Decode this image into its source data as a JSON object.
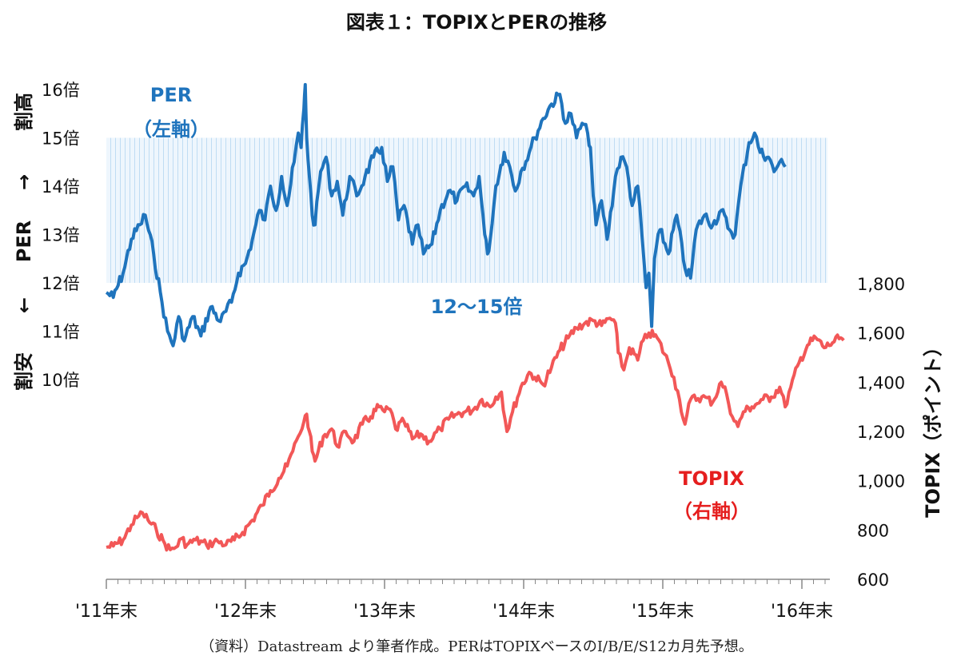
{
  "chart_data": {
    "type": "line",
    "title": "図表１：TOPIXとPERの推移",
    "x": [
      "'11年末",
      "'12年末",
      "'13年末",
      "'14年末",
      "'15年末",
      "'16年末"
    ],
    "xlabel": "",
    "y_left": {
      "label_top": "割高",
      "label_mid": "PER",
      "label_bottom": "割安",
      "arrow_up": "→",
      "arrow_down": "←",
      "ticks": [
        "16倍",
        "15倍",
        "14倍",
        "13倍",
        "12倍",
        "11倍",
        "10倍"
      ],
      "range": [
        10,
        16
      ]
    },
    "y_right": {
      "label": "TOPIX（ポイント）",
      "ticks": [
        "1,800",
        "1,600",
        "1,400",
        "1,200",
        "1,000",
        "800",
        "600"
      ],
      "range": [
        600,
        1800
      ]
    },
    "band": {
      "label": "12〜15倍",
      "from": 12,
      "to": 15
    },
    "series": [
      {
        "name_line1": "PER",
        "name_line2": "（左軸）",
        "axis": "left",
        "color": "#1f74bd",
        "points": [
          [
            0.0,
            11.8
          ],
          [
            0.05,
            11.7
          ],
          [
            0.12,
            12.2
          ],
          [
            0.18,
            12.9
          ],
          [
            0.24,
            13.2
          ],
          [
            0.28,
            13.4
          ],
          [
            0.34,
            12.6
          ],
          [
            0.4,
            11.6
          ],
          [
            0.44,
            11.0
          ],
          [
            0.48,
            10.7
          ],
          [
            0.52,
            11.3
          ],
          [
            0.56,
            10.8
          ],
          [
            0.62,
            11.3
          ],
          [
            0.68,
            10.9
          ],
          [
            0.75,
            11.5
          ],
          [
            0.82,
            11.2
          ],
          [
            0.9,
            11.6
          ],
          [
            0.95,
            12.2
          ],
          [
            1.0,
            12.4
          ],
          [
            1.05,
            12.9
          ],
          [
            1.1,
            13.5
          ],
          [
            1.14,
            13.3
          ],
          [
            1.18,
            14.0
          ],
          [
            1.22,
            13.5
          ],
          [
            1.26,
            14.2
          ],
          [
            1.3,
            13.6
          ],
          [
            1.35,
            14.5
          ],
          [
            1.38,
            15.1
          ],
          [
            1.4,
            14.8
          ],
          [
            1.42,
            15.6
          ],
          [
            1.43,
            16.1
          ],
          [
            1.44,
            15.0
          ],
          [
            1.46,
            14.2
          ],
          [
            1.48,
            13.4
          ],
          [
            1.5,
            13.2
          ],
          [
            1.54,
            14.3
          ],
          [
            1.58,
            14.6
          ],
          [
            1.62,
            13.8
          ],
          [
            1.66,
            14.1
          ],
          [
            1.7,
            13.4
          ],
          [
            1.75,
            14.2
          ],
          [
            1.8,
            13.8
          ],
          [
            1.86,
            14.2
          ],
          [
            1.92,
            14.6
          ],
          [
            1.98,
            14.8
          ],
          [
            2.02,
            14.1
          ],
          [
            2.06,
            14.4
          ],
          [
            2.1,
            13.3
          ],
          [
            2.14,
            13.6
          ],
          [
            2.2,
            12.8
          ],
          [
            2.24,
            13.2
          ],
          [
            2.28,
            12.6
          ],
          [
            2.34,
            12.8
          ],
          [
            2.4,
            13.5
          ],
          [
            2.46,
            13.9
          ],
          [
            2.52,
            13.7
          ],
          [
            2.58,
            14.0
          ],
          [
            2.64,
            13.8
          ],
          [
            2.68,
            14.2
          ],
          [
            2.72,
            13.0
          ],
          [
            2.74,
            12.6
          ],
          [
            2.76,
            12.9
          ],
          [
            2.8,
            14.0
          ],
          [
            2.86,
            14.7
          ],
          [
            2.9,
            14.4
          ],
          [
            2.94,
            13.9
          ],
          [
            2.98,
            14.3
          ],
          [
            3.04,
            14.7
          ],
          [
            3.08,
            15.0
          ],
          [
            3.14,
            15.4
          ],
          [
            3.2,
            15.7
          ],
          [
            3.26,
            15.9
          ],
          [
            3.3,
            15.3
          ],
          [
            3.34,
            15.5
          ],
          [
            3.38,
            15.0
          ],
          [
            3.42,
            15.3
          ],
          [
            3.46,
            15.1
          ],
          [
            3.48,
            14.8
          ],
          [
            3.5,
            13.8
          ],
          [
            3.52,
            13.2
          ],
          [
            3.56,
            13.7
          ],
          [
            3.6,
            12.9
          ],
          [
            3.66,
            14.2
          ],
          [
            3.7,
            14.6
          ],
          [
            3.74,
            14.4
          ],
          [
            3.78,
            13.6
          ],
          [
            3.82,
            14.0
          ],
          [
            3.85,
            13.0
          ],
          [
            3.88,
            11.9
          ],
          [
            3.9,
            12.2
          ],
          [
            3.92,
            11.1
          ],
          [
            3.94,
            12.5
          ],
          [
            3.98,
            13.1
          ],
          [
            4.04,
            12.6
          ],
          [
            4.1,
            13.4
          ],
          [
            4.16,
            12.3
          ],
          [
            4.2,
            12.1
          ],
          [
            4.24,
            13.1
          ],
          [
            4.3,
            13.4
          ],
          [
            4.36,
            13.2
          ],
          [
            4.42,
            13.5
          ],
          [
            4.48,
            13.1
          ],
          [
            4.52,
            13.0
          ],
          [
            4.56,
            14.0
          ],
          [
            4.62,
            14.9
          ],
          [
            4.66,
            15.1
          ],
          [
            4.7,
            14.7
          ],
          [
            4.76,
            14.6
          ],
          [
            4.8,
            14.3
          ],
          [
            4.84,
            14.5
          ],
          [
            4.88,
            14.4
          ]
        ]
      },
      {
        "name_line1": "TOPIX",
        "name_line2": "（右軸）",
        "axis": "right",
        "color": "#f25757",
        "points": [
          [
            0.0,
            730
          ],
          [
            0.05,
            735
          ],
          [
            0.12,
            760
          ],
          [
            0.18,
            820
          ],
          [
            0.22,
            850
          ],
          [
            0.26,
            870
          ],
          [
            0.3,
            840
          ],
          [
            0.36,
            800
          ],
          [
            0.42,
            745
          ],
          [
            0.46,
            720
          ],
          [
            0.5,
            730
          ],
          [
            0.54,
            765
          ],
          [
            0.58,
            740
          ],
          [
            0.64,
            760
          ],
          [
            0.72,
            740
          ],
          [
            0.8,
            755
          ],
          [
            0.86,
            740
          ],
          [
            0.92,
            760
          ],
          [
            0.98,
            790
          ],
          [
            1.05,
            840
          ],
          [
            1.12,
            900
          ],
          [
            1.18,
            960
          ],
          [
            1.24,
            1010
          ],
          [
            1.3,
            1060
          ],
          [
            1.34,
            1120
          ],
          [
            1.38,
            1180
          ],
          [
            1.42,
            1240
          ],
          [
            1.44,
            1270
          ],
          [
            1.46,
            1200
          ],
          [
            1.48,
            1120
          ],
          [
            1.5,
            1080
          ],
          [
            1.56,
            1180
          ],
          [
            1.62,
            1210
          ],
          [
            1.66,
            1140
          ],
          [
            1.72,
            1200
          ],
          [
            1.78,
            1160
          ],
          [
            1.84,
            1230
          ],
          [
            1.9,
            1260
          ],
          [
            1.96,
            1300
          ],
          [
            2.0,
            1280
          ],
          [
            2.04,
            1290
          ],
          [
            2.08,
            1210
          ],
          [
            2.14,
            1240
          ],
          [
            2.2,
            1170
          ],
          [
            2.26,
            1190
          ],
          [
            2.32,
            1160
          ],
          [
            2.4,
            1210
          ],
          [
            2.46,
            1250
          ],
          [
            2.52,
            1270
          ],
          [
            2.58,
            1280
          ],
          [
            2.64,
            1290
          ],
          [
            2.7,
            1330
          ],
          [
            2.76,
            1300
          ],
          [
            2.8,
            1340
          ],
          [
            2.84,
            1360
          ],
          [
            2.88,
            1200
          ],
          [
            2.92,
            1280
          ],
          [
            2.98,
            1380
          ],
          [
            3.04,
            1440
          ],
          [
            3.08,
            1420
          ],
          [
            3.14,
            1390
          ],
          [
            3.2,
            1460
          ],
          [
            3.26,
            1530
          ],
          [
            3.32,
            1580
          ],
          [
            3.38,
            1620
          ],
          [
            3.44,
            1640
          ],
          [
            3.5,
            1650
          ],
          [
            3.56,
            1630
          ],
          [
            3.62,
            1660
          ],
          [
            3.66,
            1640
          ],
          [
            3.68,
            1520
          ],
          [
            3.72,
            1450
          ],
          [
            3.76,
            1540
          ],
          [
            3.82,
            1490
          ],
          [
            3.86,
            1570
          ],
          [
            3.9,
            1600
          ],
          [
            3.96,
            1580
          ],
          [
            4.04,
            1480
          ],
          [
            4.08,
            1420
          ],
          [
            4.12,
            1330
          ],
          [
            4.16,
            1230
          ],
          [
            4.2,
            1330
          ],
          [
            4.28,
            1340
          ],
          [
            4.36,
            1320
          ],
          [
            4.42,
            1400
          ],
          [
            4.46,
            1350
          ],
          [
            4.5,
            1260
          ],
          [
            4.54,
            1220
          ],
          [
            4.58,
            1280
          ],
          [
            4.64,
            1300
          ],
          [
            4.72,
            1330
          ],
          [
            4.78,
            1340
          ],
          [
            4.84,
            1380
          ],
          [
            4.88,
            1300
          ],
          [
            4.92,
            1380
          ],
          [
            4.98,
            1480
          ],
          [
            5.04,
            1550
          ],
          [
            5.1,
            1580
          ],
          [
            5.16,
            1540
          ],
          [
            5.22,
            1560
          ],
          [
            5.28,
            1580
          ],
          [
            5.3,
            1570
          ]
        ]
      }
    ]
  },
  "footnote": "（資料）Datastream より筆者作成。PERはTOPIXベースのI/B/E/S12カ月先予想。"
}
